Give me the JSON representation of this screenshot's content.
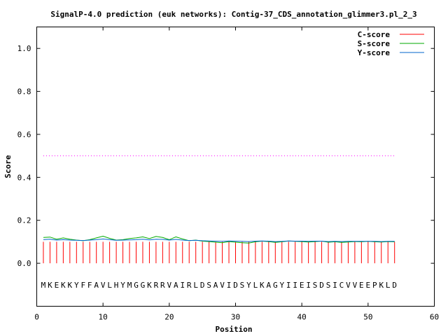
{
  "chart_data": {
    "type": "line",
    "title": "SignalP-4.0 prediction (euk networks): Contig-37_CDS_annotation_glimmer3.pl_2_3",
    "xlabel": "Position",
    "ylabel": "Score",
    "xlim": [
      0,
      60
    ],
    "ylim": [
      -0.2,
      1.1
    ],
    "xticks": [
      0,
      10,
      20,
      30,
      40,
      50,
      60
    ],
    "xtick_labels": [
      "0",
      "10",
      "20",
      "30",
      "40",
      "50",
      "60"
    ],
    "yticks": [
      0.0,
      0.2,
      0.4,
      0.6,
      0.8,
      1.0
    ],
    "ytick_labels": [
      "0.0",
      "0.2",
      "0.4",
      "0.6",
      "0.8",
      "1.0"
    ],
    "legend_position": "top-right",
    "threshold": {
      "value": 0.5,
      "x_range": [
        1,
        54
      ],
      "color": "#ff00ff"
    },
    "sequence": "MKEKKYFFAVLHYMGGKRRVAIRLDSAVIDSYLKAGYIIEISDSICVVEEPKLD",
    "sequence_y": -0.1,
    "series": [
      {
        "name": "C-score",
        "style": "impulses",
        "color": "#ff0000",
        "x": [
          1,
          2,
          3,
          4,
          5,
          6,
          7,
          8,
          9,
          10,
          11,
          12,
          13,
          14,
          15,
          16,
          17,
          18,
          19,
          20,
          21,
          22,
          23,
          24,
          25,
          26,
          27,
          28,
          29,
          30,
          31,
          32,
          33,
          34,
          35,
          36,
          37,
          38,
          39,
          40,
          41,
          42,
          43,
          44,
          45,
          46,
          47,
          48,
          49,
          50,
          51,
          52,
          53,
          54
        ],
        "values": [
          0.1,
          0.1,
          0.1,
          0.1,
          0.1,
          0.1,
          0.1,
          0.1,
          0.1,
          0.1,
          0.1,
          0.1,
          0.1,
          0.1,
          0.1,
          0.1,
          0.1,
          0.1,
          0.1,
          0.1,
          0.1,
          0.1,
          0.1,
          0.1,
          0.1,
          0.1,
          0.1,
          0.1,
          0.1,
          0.1,
          0.1,
          0.1,
          0.1,
          0.1,
          0.1,
          0.1,
          0.1,
          0.1,
          0.1,
          0.1,
          0.1,
          0.1,
          0.1,
          0.1,
          0.1,
          0.1,
          0.1,
          0.1,
          0.1,
          0.1,
          0.1,
          0.1,
          0.1,
          0.1
        ]
      },
      {
        "name": "S-score",
        "style": "line",
        "color": "#00aa00",
        "x": [
          1,
          2,
          3,
          4,
          5,
          6,
          7,
          8,
          9,
          10,
          11,
          12,
          13,
          14,
          15,
          16,
          17,
          18,
          19,
          20,
          21,
          22,
          23,
          24,
          25,
          26,
          27,
          28,
          29,
          30,
          31,
          32,
          33,
          34,
          35,
          36,
          37,
          38,
          39,
          40,
          41,
          42,
          43,
          44,
          45,
          46,
          47,
          48,
          49,
          50,
          51,
          52,
          53,
          54
        ],
        "values": [
          0.12,
          0.122,
          0.112,
          0.118,
          0.112,
          0.108,
          0.105,
          0.11,
          0.118,
          0.126,
          0.116,
          0.108,
          0.11,
          0.115,
          0.118,
          0.123,
          0.115,
          0.125,
          0.12,
          0.11,
          0.123,
          0.113,
          0.105,
          0.108,
          0.103,
          0.101,
          0.098,
          0.096,
          0.101,
          0.098,
          0.096,
          0.094,
          0.1,
          0.103,
          0.101,
          0.097,
          0.1,
          0.104,
          0.102,
          0.101,
          0.099,
          0.101,
          0.103,
          0.098,
          0.1,
          0.097,
          0.099,
          0.101,
          0.1,
          0.102,
          0.1,
          0.099,
          0.101,
          0.1
        ]
      },
      {
        "name": "Y-score",
        "style": "line",
        "color": "#0066cc",
        "x": [
          1,
          2,
          3,
          4,
          5,
          6,
          7,
          8,
          9,
          10,
          11,
          12,
          13,
          14,
          15,
          16,
          17,
          18,
          19,
          20,
          21,
          22,
          23,
          24,
          25,
          26,
          27,
          28,
          29,
          30,
          31,
          32,
          33,
          34,
          35,
          36,
          37,
          38,
          39,
          40,
          41,
          42,
          43,
          44,
          45,
          46,
          47,
          48,
          49,
          50,
          51,
          52,
          53,
          54
        ],
        "values": [
          0.11,
          0.112,
          0.108,
          0.11,
          0.108,
          0.107,
          0.106,
          0.108,
          0.11,
          0.113,
          0.11,
          0.107,
          0.108,
          0.109,
          0.11,
          0.112,
          0.109,
          0.112,
          0.111,
          0.108,
          0.111,
          0.108,
          0.106,
          0.107,
          0.105,
          0.104,
          0.103,
          0.102,
          0.104,
          0.103,
          0.102,
          0.101,
          0.103,
          0.104,
          0.103,
          0.101,
          0.102,
          0.104,
          0.103,
          0.103,
          0.102,
          0.103,
          0.103,
          0.101,
          0.102,
          0.101,
          0.102,
          0.102,
          0.102,
          0.102,
          0.102,
          0.101,
          0.102,
          0.102
        ]
      }
    ]
  }
}
